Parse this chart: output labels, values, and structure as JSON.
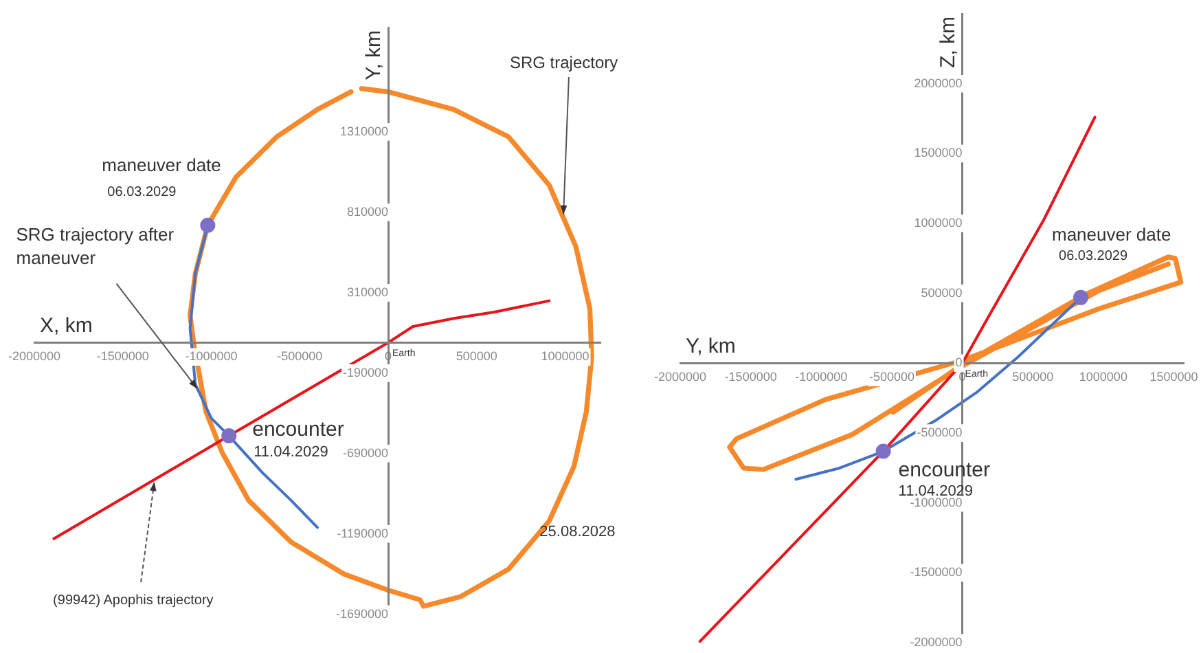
{
  "chart_data": [
    {
      "type": "line",
      "xlabel": "X, km",
      "ylabel": "Y, km",
      "xlim": [
        -2000000,
        1200000
      ],
      "ylim": [
        -1700000,
        1960000
      ],
      "xticks": [
        -2000000,
        -1500000,
        -1000000,
        -500000,
        0,
        500000,
        1000000
      ],
      "yticks": [
        -1690000,
        -1190000,
        -690000,
        -190000,
        310000,
        810000,
        1310000
      ],
      "marker": "none",
      "line_style": "solid",
      "series": [
        {
          "color": "#f5892b",
          "x": [
            -150000,
            0,
            370000,
            680000,
            910000,
            1060000,
            1140000,
            1150000,
            1120000,
            1050000,
            910000,
            680000,
            410000,
            200000,
            180000,
            0,
            -250000,
            -550000,
            -790000,
            -940000,
            -1030000,
            -1100000,
            -1120000,
            -1090000,
            -1020000,
            -860000,
            -630000,
            -400000,
            -210000
          ],
          "values": [
            1580000,
            1560000,
            1450000,
            1280000,
            980000,
            600000,
            210000,
            -90000,
            -430000,
            -770000,
            -1110000,
            -1410000,
            -1580000,
            -1640000,
            -1600000,
            -1540000,
            -1440000,
            -1240000,
            -980000,
            -680000,
            -430000,
            0,
            170000,
            430000,
            730000,
            1030000,
            1280000,
            1450000,
            1560000
          ]
        },
        {
          "color": "#4472c4",
          "x": [
            -1020000,
            -1090000,
            -1120000,
            -1090000,
            -1000000,
            -900000,
            -710000,
            -550000,
            -400000
          ],
          "values": [
            730000,
            430000,
            90000,
            -260000,
            -470000,
            -580000,
            -810000,
            -980000,
            -1150000
          ]
        },
        {
          "color": "#e8141b",
          "x": [
            -1890000,
            -900000,
            0,
            140000,
            370000,
            600000,
            910000
          ],
          "values": [
            -1220000,
            -580000,
            0,
            100000,
            150000,
            190000,
            260000
          ]
        },
        {
          "type": "scatter",
          "marker": "circle",
          "color": "#7b6fc6",
          "x": [
            -1020000,
            -900000
          ],
          "values": [
            730000,
            -580000
          ]
        }
      ],
      "annotations": [
        {
          "text": "SRG trajectory",
          "x": 990000,
          "y": 780000
        },
        {
          "text": "maneuver date",
          "x": -1020000,
          "y": 730000
        },
        {
          "text": "06.03.2029",
          "x": -1020000,
          "y": 730000
        },
        {
          "text": "SRG trajectory after maneuver",
          "x": -1070000,
          "y": -300000
        },
        {
          "text": "encounter",
          "x": -900000,
          "y": -580000
        },
        {
          "text": "11.04.2029",
          "x": -900000,
          "y": -580000
        },
        {
          "text": "25.08.2028",
          "x": 910000,
          "y": -1110000
        },
        {
          "text": "(99942) Apophis trajectory",
          "x": -1320000,
          "y": -850000
        },
        {
          "text": "Earth",
          "x": 0,
          "y": 0
        }
      ]
    },
    {
      "type": "line",
      "xlabel": "Y, km",
      "ylabel": "Z, km",
      "xlim": [
        -2000000,
        1570000
      ],
      "ylim": [
        -2000000,
        2500000
      ],
      "xticks": [
        -2000000,
        -1500000,
        -1000000,
        -500000,
        0,
        500000,
        1000000,
        1500000
      ],
      "yticks": [
        -2000000,
        -1500000,
        -1000000,
        -500000,
        0,
        500000,
        1000000,
        1500000,
        2000000
      ],
      "marker": "none",
      "line_style": "solid",
      "series": [
        {
          "color": "#f5892b",
          "x": [
            -490000,
            0,
            870000,
            1460000,
            1510000,
            1550000,
            970000,
            0,
            -970000,
            -1600000,
            -1650000,
            -1550000,
            -1410000,
            -780000,
            0,
            970000,
            1460000
          ],
          "values": [
            -350000,
            -10000,
            490000,
            760000,
            750000,
            580000,
            390000,
            20000,
            -260000,
            -540000,
            -600000,
            -750000,
            -760000,
            -510000,
            -20000,
            520000,
            710000
          ]
        },
        {
          "color": "#4472c4",
          "x": [
            -1180000,
            -870000,
            -560000,
            -190000,
            100000,
            390000,
            840000
          ],
          "values": [
            -830000,
            -750000,
            -630000,
            -410000,
            -210000,
            40000,
            470000
          ]
        },
        {
          "color": "#e8141b",
          "x": [
            -1860000,
            -560000,
            0,
            190000,
            580000,
            940000
          ],
          "values": [
            -1990000,
            -630000,
            0,
            340000,
            1030000,
            1760000
          ]
        },
        {
          "type": "scatter",
          "marker": "circle",
          "color": "#7b6fc6",
          "x": [
            840000,
            -560000
          ],
          "values": [
            470000,
            -630000
          ]
        }
      ],
      "annotations": [
        {
          "text": "maneuver date",
          "x": 840000,
          "y": 470000
        },
        {
          "text": "06.03.2029",
          "x": 840000,
          "y": 470000
        },
        {
          "text": "encounter",
          "x": -560000,
          "y": -630000
        },
        {
          "text": "11.04.2029",
          "x": -560000,
          "y": -630000
        },
        {
          "text": "Earth",
          "x": 0,
          "y": 0
        }
      ]
    }
  ]
}
